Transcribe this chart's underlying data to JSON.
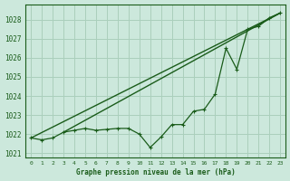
{
  "title": "",
  "xlabel": "Graphe pression niveau de la mer (hPa)",
  "ylabel": "",
  "bg_color": "#cce8dc",
  "grid_color": "#aacfbc",
  "line_color": "#1a5c1a",
  "xlim": [
    -0.5,
    23.5
  ],
  "ylim": [
    1020.8,
    1028.8
  ],
  "yticks": [
    1021,
    1022,
    1023,
    1024,
    1025,
    1026,
    1027,
    1028
  ],
  "xticks": [
    0,
    1,
    2,
    3,
    4,
    5,
    6,
    7,
    8,
    9,
    10,
    11,
    12,
    13,
    14,
    15,
    16,
    17,
    18,
    19,
    20,
    21,
    22,
    23
  ],
  "series_jagged": {
    "x": [
      0,
      1,
      2,
      3,
      4,
      5,
      6,
      7,
      8,
      9,
      10,
      11,
      12,
      13,
      14,
      15,
      16,
      17,
      18,
      19,
      20,
      21,
      22,
      23
    ],
    "y": [
      1021.8,
      1021.7,
      1021.8,
      1022.1,
      1022.2,
      1022.3,
      1022.2,
      1022.25,
      1022.3,
      1022.3,
      1022.0,
      1021.3,
      1021.85,
      1022.5,
      1022.5,
      1023.2,
      1023.3,
      1024.1,
      1026.5,
      1025.4,
      1027.5,
      1027.65,
      1028.1,
      1028.35
    ]
  },
  "series_diag1": {
    "x": [
      0,
      23
    ],
    "y": [
      1021.8,
      1028.35
    ]
  },
  "series_diag2": {
    "x": [
      3,
      23
    ],
    "y": [
      1022.1,
      1028.35
    ]
  }
}
